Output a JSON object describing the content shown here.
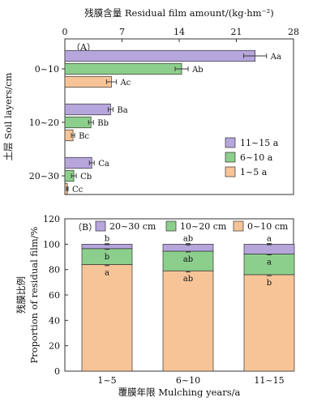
{
  "colors": {
    "orange": "#f7c497",
    "green": "#8ccf8c",
    "purple": "#b6a6dc",
    "stroke": "#333333"
  },
  "chart_data": [
    {
      "panel_label": "（A）",
      "type": "bar",
      "orientation": "horizontal",
      "title": "残膜含量 Residual film amount/(kg·hm⁻²)",
      "ylabel": "土层 Soil layers/cm",
      "xlim": [
        0,
        28
      ],
      "xticks": [
        "0",
        "7",
        "14",
        "21",
        "28"
      ],
      "categories": [
        "0~10",
        "10~20",
        "20~30"
      ],
      "series": [
        {
          "name": "11~15 a",
          "color_key": "purple",
          "values": [
            23.3,
            5.6,
            3.3
          ],
          "errors": [
            1.4,
            0.3,
            0.3
          ],
          "labels": [
            "Aa",
            "Ba",
            "Ca"
          ]
        },
        {
          "name": "6~10 a",
          "color_key": "green",
          "values": [
            14.3,
            3.2,
            1.1
          ],
          "errors": [
            0.8,
            0.3,
            0.3
          ],
          "labels": [
            "Ab",
            "Bb",
            "Cb"
          ]
        },
        {
          "name": "1~5 a",
          "color_key": "orange",
          "values": [
            5.7,
            1.0,
            0.3
          ],
          "errors": [
            0.6,
            0.2,
            0.1
          ],
          "labels": [
            "Ac",
            "Bc",
            "Cc"
          ]
        }
      ],
      "legend_position": "bottom-right",
      "legend_order": [
        "11~15 a",
        "6~10 a",
        "1~5 a"
      ]
    },
    {
      "panel_label": "（B）",
      "type": "bar",
      "stacked": true,
      "xlabel": "覆膜年限 Mulching years/a",
      "ylabel_lines": [
        "残膜比例",
        "Proportion of residual film/%"
      ],
      "ylim": [
        0,
        120
      ],
      "yticks": [
        "0",
        "20",
        "40",
        "60",
        "80",
        "100",
        "120"
      ],
      "categories": [
        "1~5",
        "6~10",
        "11~15"
      ],
      "series": [
        {
          "name": "0~10 cm",
          "color_key": "orange",
          "values": [
            84,
            79,
            76
          ],
          "errors": [
            0.9,
            0.9,
            0.8
          ],
          "labels": [
            "a",
            "ab",
            "b"
          ]
        },
        {
          "name": "10~20 cm",
          "color_key": "green",
          "values": [
            12.5,
            15.5,
            16.3
          ],
          "errors": [
            0.6,
            0.7,
            0.7
          ],
          "labels": [
            "b",
            "ab",
            "a"
          ]
        },
        {
          "name": "20~30 cm",
          "color_key": "purple",
          "values": [
            3.5,
            5.5,
            7.7
          ],
          "errors": [
            0.4,
            0.6,
            0.5
          ],
          "labels": [
            "b",
            "ab",
            "a"
          ]
        }
      ],
      "legend_position": "top",
      "legend_order": [
        "20~30 cm",
        "10~20 cm",
        "0~10 cm"
      ]
    }
  ]
}
